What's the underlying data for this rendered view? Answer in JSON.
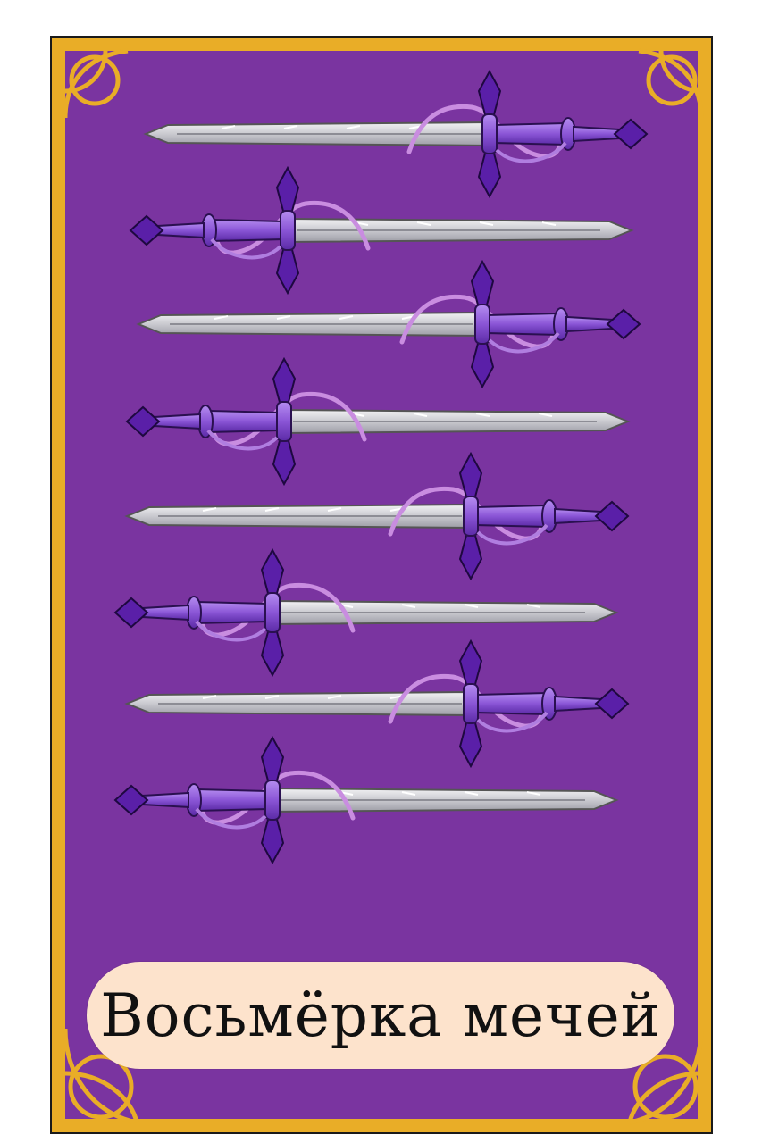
{
  "card": {
    "title": "Восьмёрка мечей",
    "sword_count": 8,
    "colors": {
      "frame": "#e9ad27",
      "field": "#7a34a0",
      "title_plate": "#fde3cc",
      "blade": "#d4d4d8",
      "hilt": "#8e5ed6",
      "gem": "#5a1fa8",
      "ribbon": "#c98de0"
    },
    "icons": [
      "sword-icon",
      "corner-ornament-icon"
    ]
  }
}
